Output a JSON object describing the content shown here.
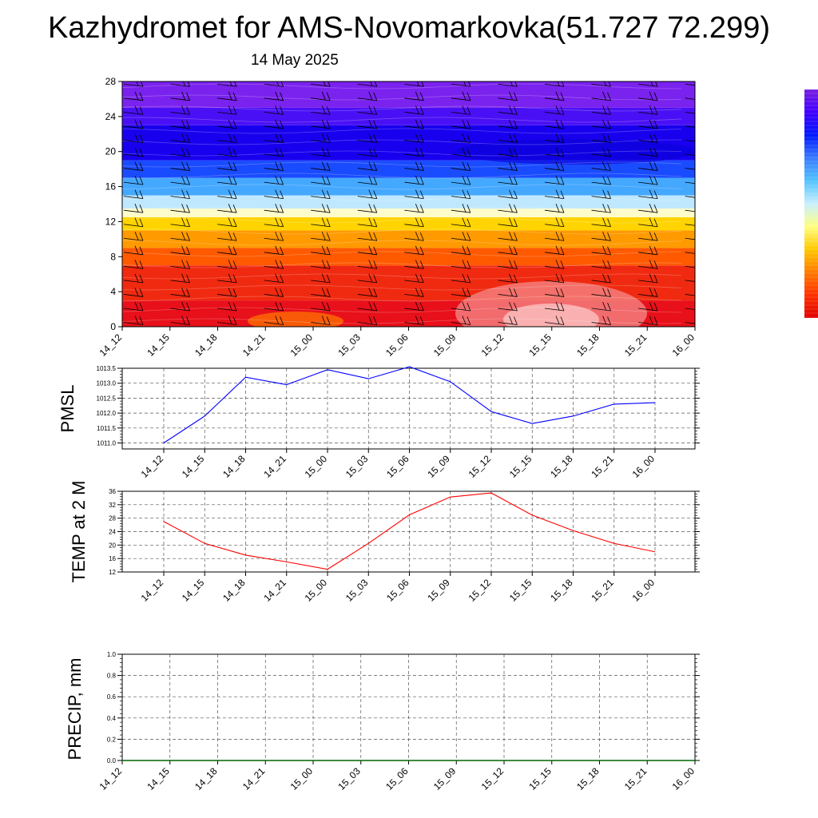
{
  "header": {
    "title": "Kazhydromet for AMS-Novomarkovka(51.727 72.299)",
    "subtitle": "14 May 2025"
  },
  "colors": {
    "pmsl_line": "#0000ff",
    "temp_line": "#ff0000",
    "precip_line": "#006400",
    "colorbar": [
      "#7b1fe0",
      "#3f00ff",
      "#0018ff",
      "#3a7bff",
      "#52c3ff",
      "#c8f0ff",
      "#ffff80",
      "#ffc800",
      "#ff7a00",
      "#ff3000",
      "#e00000"
    ]
  },
  "chart_data": [
    {
      "type": "heatmap",
      "name": "vertical-profile",
      "x": [
        "14_12",
        "14_15",
        "14_18",
        "14_21",
        "15_00",
        "15_03",
        "15_06",
        "15_09",
        "15_12",
        "15_15",
        "15_18",
        "15_21",
        "16_00"
      ],
      "ylim": [
        0,
        28
      ],
      "yticks": [
        0,
        4,
        8,
        12,
        16,
        20,
        24,
        28
      ],
      "bands": [
        {
          "from": 0,
          "to": 3,
          "color": "#e8101a"
        },
        {
          "from": 3,
          "to": 7,
          "color": "#f02a10"
        },
        {
          "from": 7,
          "to": 9,
          "color": "#ff5a00"
        },
        {
          "from": 9,
          "to": 11,
          "color": "#ff9a00"
        },
        {
          "from": 11,
          "to": 12.5,
          "color": "#ffd400"
        },
        {
          "from": 12.5,
          "to": 13.5,
          "color": "#fffccc"
        },
        {
          "from": 13.5,
          "to": 15,
          "color": "#bfe8ff"
        },
        {
          "from": 15,
          "to": 17,
          "color": "#45a8ff"
        },
        {
          "from": 17,
          "to": 19,
          "color": "#1a4cff"
        },
        {
          "from": 19,
          "to": 23,
          "color": "#1800ee"
        },
        {
          "from": 23,
          "to": 25,
          "color": "#4a10f5"
        },
        {
          "from": 25,
          "to": 28,
          "color": "#7a22ee"
        }
      ]
    },
    {
      "type": "line",
      "name": "PMSL",
      "ylabel": "PMSL",
      "x": [
        "14_12",
        "14_15",
        "14_18",
        "14_21",
        "15_00",
        "15_03",
        "15_06",
        "15_09",
        "15_12",
        "15_15",
        "15_18",
        "15_21",
        "16_00"
      ],
      "values": [
        1011.0,
        1011.9,
        1013.2,
        1012.95,
        1013.45,
        1013.15,
        1013.55,
        1013.05,
        1012.05,
        1011.65,
        1011.9,
        1012.3,
        1012.35
      ],
      "ylim": [
        1010.8,
        1013.5
      ],
      "yticks": [
        1011.0,
        1011.5,
        1012.0,
        1012.5,
        1013.0,
        1013.5
      ],
      "ytick_labels": [
        "1011.0",
        "1011.5",
        "1012.0",
        "1012.5",
        "1013.0",
        "1013.5"
      ],
      "grid": true
    },
    {
      "type": "line",
      "name": "TEMP",
      "ylabel": "TEMP at 2 M",
      "x": [
        "14_12",
        "14_15",
        "14_18",
        "14_21",
        "15_00",
        "15_03",
        "15_06",
        "15_09",
        "15_12",
        "15_15",
        "15_18",
        "15_21",
        "16_00"
      ],
      "values": [
        27,
        20.5,
        17,
        15,
        12.8,
        20.5,
        29,
        34.3,
        35.5,
        28.9,
        24.3,
        20.5,
        18
      ],
      "ylim": [
        12,
        36
      ],
      "yticks": [
        12,
        16,
        20,
        24,
        28,
        32,
        36
      ],
      "ytick_labels": [
        "12",
        "16",
        "20",
        "24",
        "28",
        "32",
        "36"
      ],
      "grid": true
    },
    {
      "type": "line",
      "name": "PRECIP",
      "ylabel": "PRECIP, mm",
      "x": [
        "14_12",
        "14_15",
        "14_18",
        "14_21",
        "15_00",
        "15_03",
        "15_06",
        "15_09",
        "15_12",
        "15_15",
        "15_18",
        "15_21",
        "16_00"
      ],
      "values": [
        0,
        0,
        0,
        0,
        0,
        0,
        0,
        0,
        0,
        0,
        0,
        0,
        0
      ],
      "ylim": [
        0,
        1
      ],
      "yticks": [
        0,
        0.2,
        0.4,
        0.6,
        0.8,
        1.0
      ],
      "ytick_labels": [
        "0.0",
        "0.2",
        "0.4",
        "0.6",
        "0.8",
        "1.0"
      ],
      "grid": true
    }
  ]
}
